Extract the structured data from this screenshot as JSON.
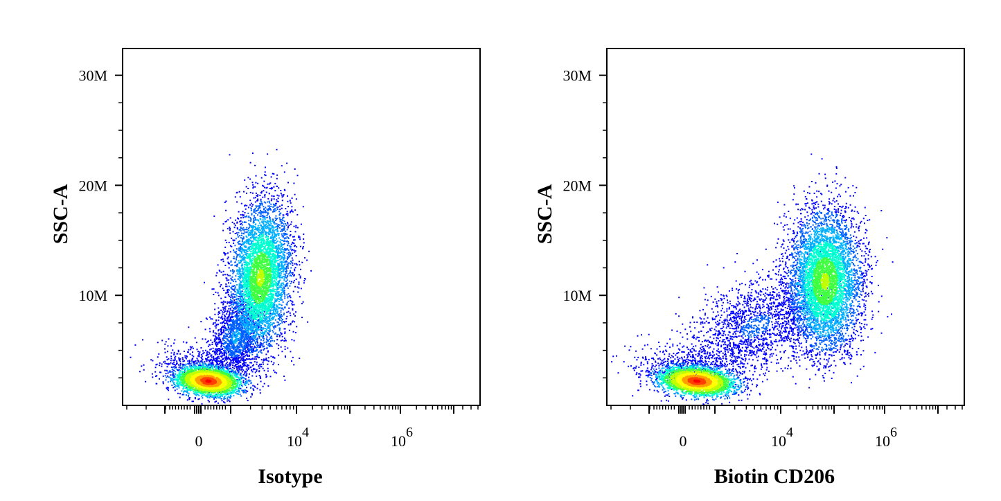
{
  "chart_data": [
    {
      "type": "scatter",
      "subtype": "flow-cytometry-density-dot-plot",
      "xlabel": "Isotype",
      "ylabel": "SSC-A",
      "x_scale": "biexponential",
      "x_tick_labels": [
        {
          "value": 0,
          "base": "0",
          "exp": ""
        },
        {
          "value": 10000,
          "base": "10",
          "exp": "4"
        },
        {
          "value": 1000000,
          "base": "10",
          "exp": "6"
        }
      ],
      "y_tick_labels": [
        {
          "value": 10000000,
          "label": "10M"
        },
        {
          "value": 20000000,
          "label": "20M"
        },
        {
          "value": 30000000,
          "label": "30M"
        }
      ],
      "ylim": [
        0,
        30000000
      ],
      "grid": false,
      "legend": "none",
      "colormap": [
        "#0000ff",
        "#00a0ff",
        "#00ffa0",
        "#a0ff00",
        "#ffff00",
        "#ff8000",
        "#ff0000"
      ],
      "populations": [
        {
          "x_center": 300,
          "y_center": 2000000,
          "n_events": 3600,
          "peak_color": "#ff0000"
        },
        {
          "x_center": 2000,
          "y_center": 12000000,
          "n_events": 5200,
          "peak_color": "#a0ff00"
        },
        {
          "x_center": 1000,
          "y_center": 6000000,
          "n_events": 1400,
          "peak_color": "#0000ff"
        }
      ]
    },
    {
      "type": "scatter",
      "subtype": "flow-cytometry-density-dot-plot",
      "xlabel": "Biotin CD206",
      "ylabel": "SSC-A",
      "x_scale": "biexponential",
      "x_tick_labels": [
        {
          "value": 0,
          "base": "0",
          "exp": ""
        },
        {
          "value": 10000,
          "base": "10",
          "exp": "4"
        },
        {
          "value": 1000000,
          "base": "10",
          "exp": "6"
        }
      ],
      "y_tick_labels": [
        {
          "value": 10000000,
          "label": "10M"
        },
        {
          "value": 20000000,
          "label": "20M"
        },
        {
          "value": 30000000,
          "label": "30M"
        }
      ],
      "ylim": [
        0,
        30000000
      ],
      "grid": false,
      "legend": "none",
      "colormap": [
        "#0000ff",
        "#00a0ff",
        "#00ffa0",
        "#a0ff00",
        "#ffff00",
        "#ff8000",
        "#ff0000"
      ],
      "populations": [
        {
          "x_center": 400,
          "y_center": 2000000,
          "n_events": 3400,
          "peak_color": "#ff0000"
        },
        {
          "x_center": 60000,
          "y_center": 11000000,
          "n_events": 5600,
          "peak_color": "#a0ff00"
        },
        {
          "x_center": 5000,
          "y_center": 6000000,
          "n_events": 1800,
          "peak_color": "#0000ff"
        }
      ]
    }
  ]
}
